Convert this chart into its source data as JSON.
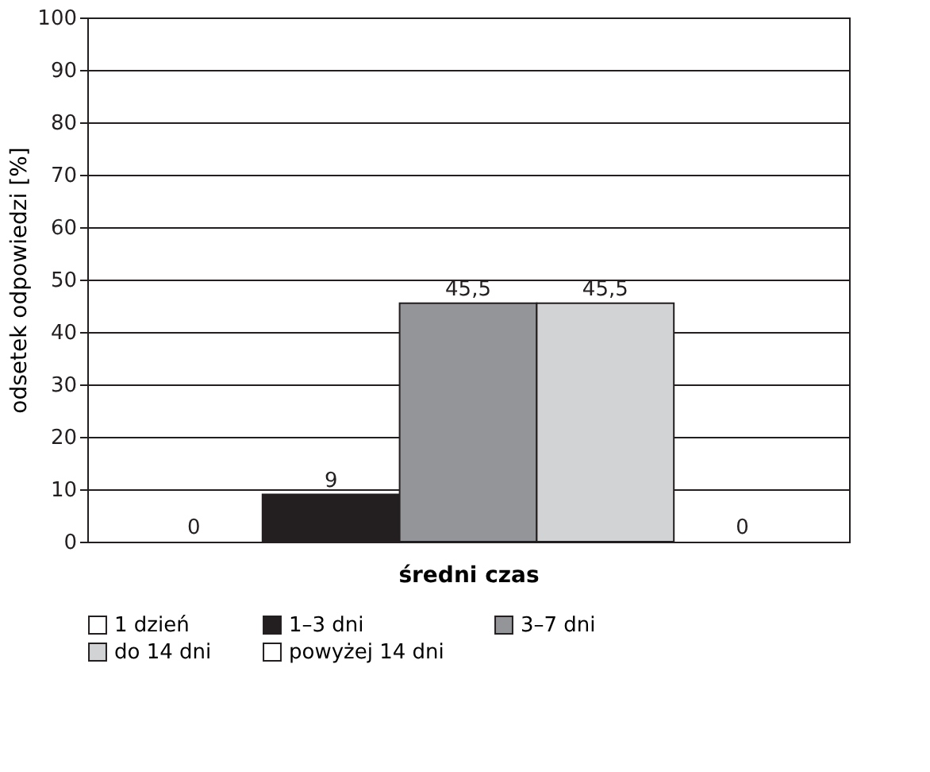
{
  "chart_data": {
    "type": "bar",
    "xlabel": "średni czas",
    "ylabel": "odsetek odpowiedzi [%]",
    "categories": [
      null
    ],
    "series": [
      {
        "name": "1 dzień",
        "color": "#ffffff",
        "values": [
          0
        ]
      },
      {
        "name": "1–3 dni",
        "color": "#231f20",
        "values": [
          9
        ]
      },
      {
        "name": "3–7 dni",
        "color": "#939598",
        "values": [
          45.5
        ]
      },
      {
        "name": "do 14 dni",
        "color": "#d1d3d4",
        "values": [
          45.5
        ]
      },
      {
        "name": "powyżej 14 dni",
        "color": "#ffffff",
        "values": [
          0
        ]
      }
    ],
    "value_labels": [
      [
        "0"
      ],
      [
        "9"
      ],
      [
        "45,5"
      ],
      [
        "45,5"
      ],
      [
        "0"
      ]
    ],
    "ylim": [
      0,
      100
    ],
    "yticks": [
      0,
      10,
      20,
      30,
      40,
      50,
      60,
      70,
      80,
      90,
      100
    ],
    "grid": "y",
    "legend": "bottom"
  }
}
